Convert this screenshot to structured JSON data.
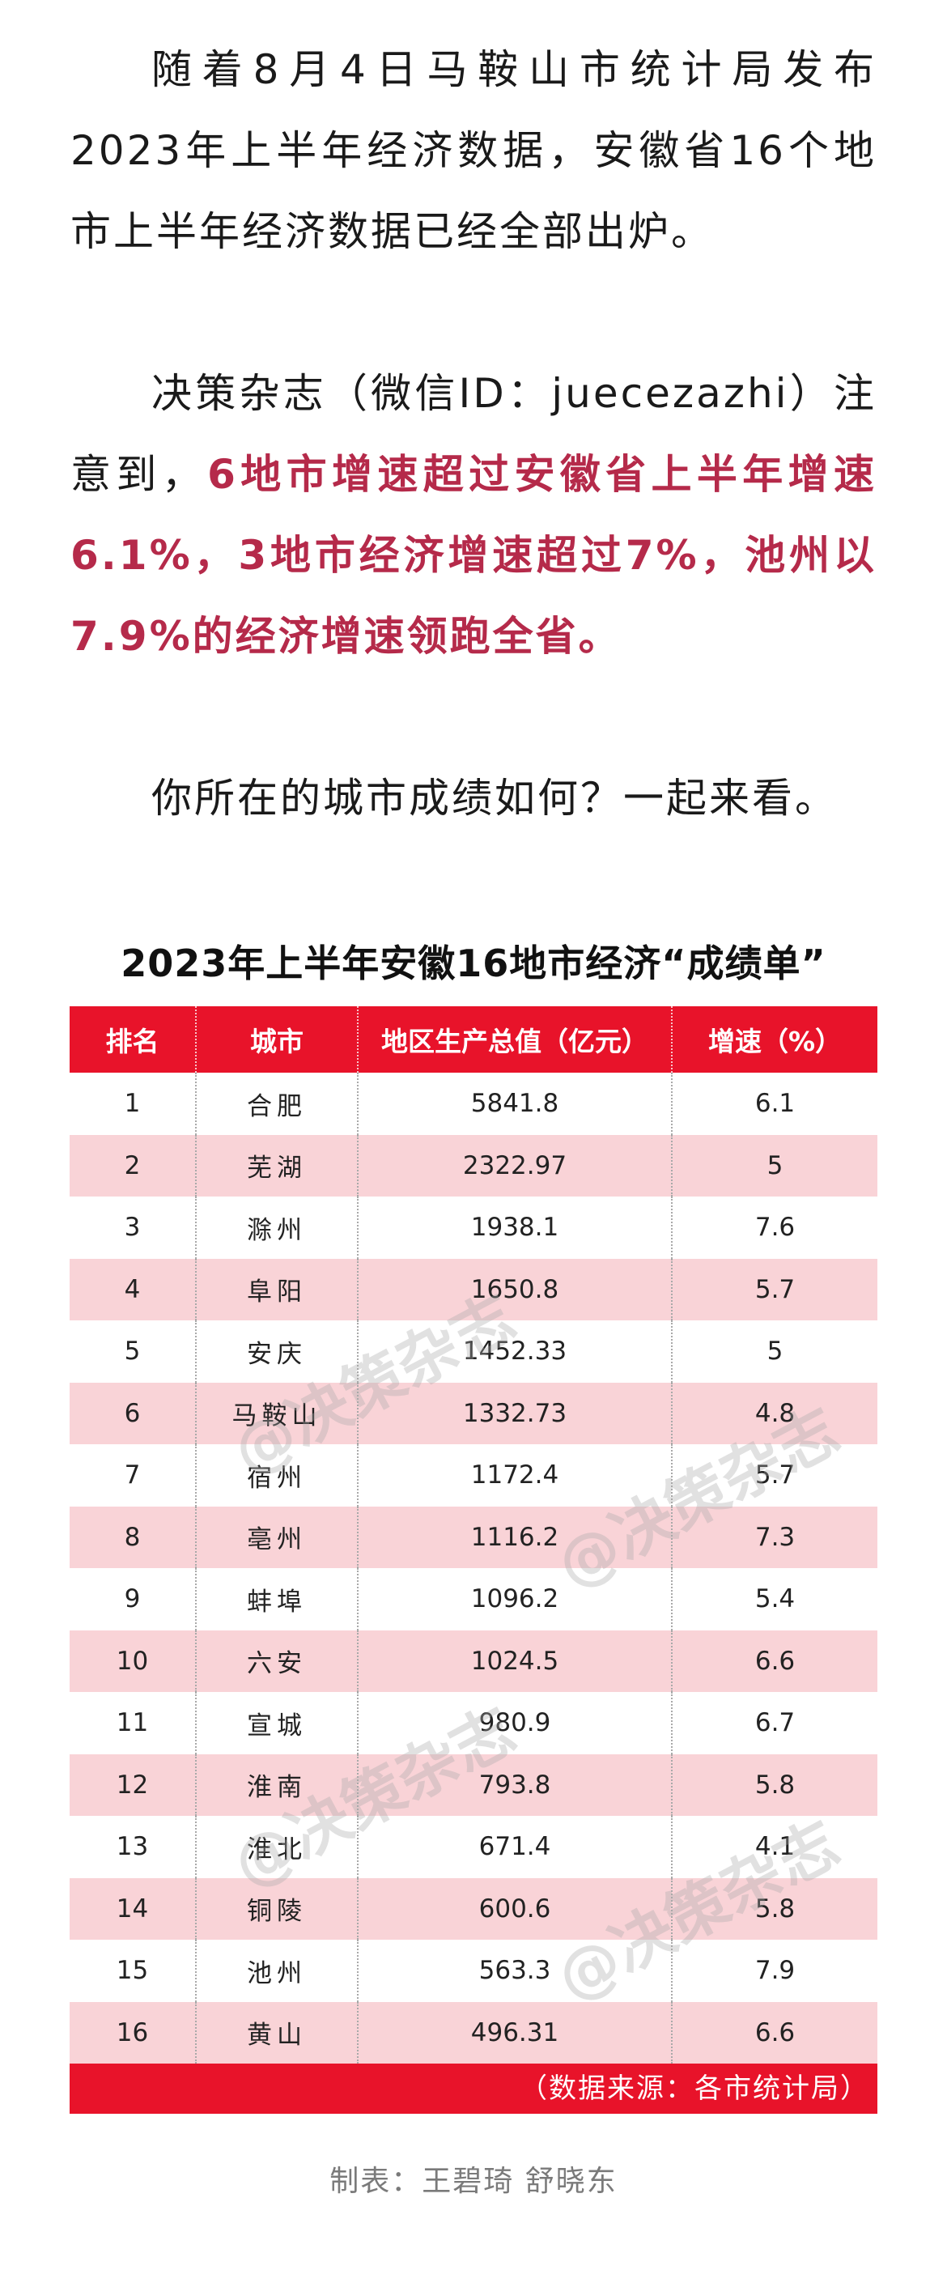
{
  "article": {
    "p1": "随着8月4日马鞍山市统计局发布2023年上半年经济数据，安徽省16个地市上半年经济数据已经全部出炉。",
    "p2_lead": "决策杂志（微信ID：juecezazhi）注意到，",
    "p2_highlight": "6地市增速超过安徽省上半年增速6.1%，3地市经济增速超过7%，池州以7.9%的经济增速领跑全省。",
    "p3": "你所在的城市成绩如何？一起来看。"
  },
  "table": {
    "title": "2023年上半年安徽16地市经济“成绩单”",
    "headers": [
      "排名",
      "城市",
      "地区生产总值（亿元）",
      "增速（%）"
    ],
    "rows": [
      {
        "rank": "1",
        "city": "合肥",
        "gdp": "5841.8",
        "growth": "6.1"
      },
      {
        "rank": "2",
        "city": "芜湖",
        "gdp": "2322.97",
        "growth": "5"
      },
      {
        "rank": "3",
        "city": "滁州",
        "gdp": "1938.1",
        "growth": "7.6"
      },
      {
        "rank": "4",
        "city": "阜阳",
        "gdp": "1650.8",
        "growth": "5.7"
      },
      {
        "rank": "5",
        "city": "安庆",
        "gdp": "1452.33",
        "growth": "5"
      },
      {
        "rank": "6",
        "city": "马鞍山",
        "gdp": "1332.73",
        "growth": "4.8"
      },
      {
        "rank": "7",
        "city": "宿州",
        "gdp": "1172.4",
        "growth": "5.7"
      },
      {
        "rank": "8",
        "city": "亳州",
        "gdp": "1116.2",
        "growth": "7.3"
      },
      {
        "rank": "9",
        "city": "蚌埠",
        "gdp": "1096.2",
        "growth": "5.4"
      },
      {
        "rank": "10",
        "city": "六安",
        "gdp": "1024.5",
        "growth": "6.6"
      },
      {
        "rank": "11",
        "city": "宣城",
        "gdp": "980.9",
        "growth": "6.7"
      },
      {
        "rank": "12",
        "city": "淮南",
        "gdp": "793.8",
        "growth": "5.8"
      },
      {
        "rank": "13",
        "city": "淮北",
        "gdp": "671.4",
        "growth": "4.1"
      },
      {
        "rank": "14",
        "city": "铜陵",
        "gdp": "600.6",
        "growth": "5.8"
      },
      {
        "rank": "15",
        "city": "池州",
        "gdp": "563.3",
        "growth": "7.9"
      },
      {
        "rank": "16",
        "city": "黄山",
        "gdp": "496.31",
        "growth": "6.6"
      }
    ],
    "source": "（数据来源：各市统计局）"
  },
  "credit": "制表：王碧琦 舒晓东",
  "watermark": "@决策杂志",
  "colors": {
    "header_red": "#e8132a",
    "stripe_pink": "#f9d3d7",
    "highlight_text": "#b52a4a"
  }
}
